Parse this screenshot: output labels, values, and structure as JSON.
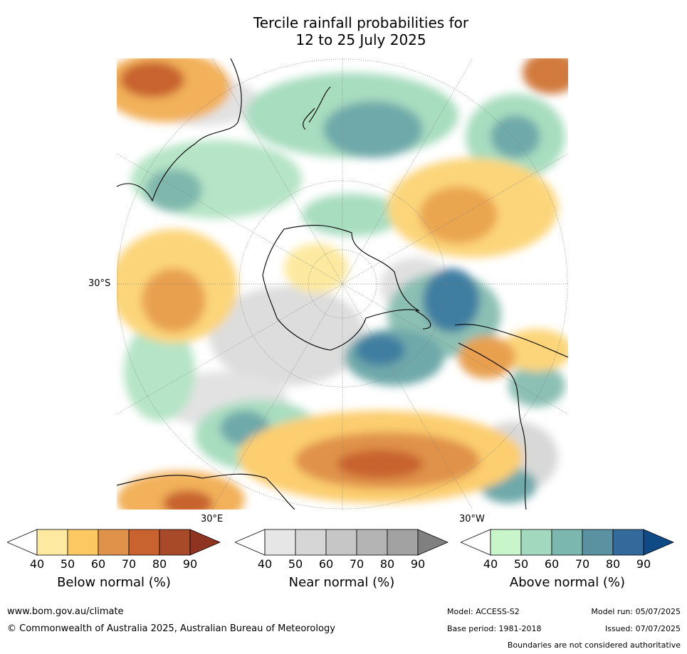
{
  "title_line1": "Tercile rainfall probabilities for",
  "title_line2": "12 to 25 July 2025",
  "map": {
    "lat_label": "30°S",
    "lon_label_east": "30°E",
    "lon_label_west": "30°W"
  },
  "colorbars": [
    {
      "title": "Below normal (%)",
      "ticks": [
        "40",
        "50",
        "60",
        "70",
        "80",
        "90"
      ],
      "colors": [
        "#ffffff",
        "#fde9a0",
        "#fcc862",
        "#e0924a",
        "#c8622e",
        "#a84a2a",
        "#8e3420"
      ]
    },
    {
      "title": "Near normal (%)",
      "ticks": [
        "40",
        "50",
        "60",
        "70",
        "80",
        "90"
      ],
      "colors": [
        "#ffffff",
        "#e6e6e6",
        "#d6d6d6",
        "#c6c6c6",
        "#b4b4b4",
        "#a2a2a2",
        "#808080"
      ]
    },
    {
      "title": "Above normal (%)",
      "ticks": [
        "40",
        "50",
        "60",
        "70",
        "80",
        "90"
      ],
      "colors": [
        "#ffffff",
        "#c9f5cb",
        "#a2d8bd",
        "#7cb7af",
        "#5b92a2",
        "#336a9c",
        "#0f4a86"
      ]
    }
  ],
  "footer": {
    "url": "www.bom.gov.au/climate",
    "copyright": "© Commonwealth of Australia 2025, Australian Bureau of Meteorology",
    "model": "Model: ACCESS-S2",
    "model_run": "Model run: 05/07/2025",
    "base_period": "Base period: 1981-2018",
    "issued": "Issued: 07/07/2025",
    "disclaimer": "Boundaries are not considered authoritative"
  }
}
